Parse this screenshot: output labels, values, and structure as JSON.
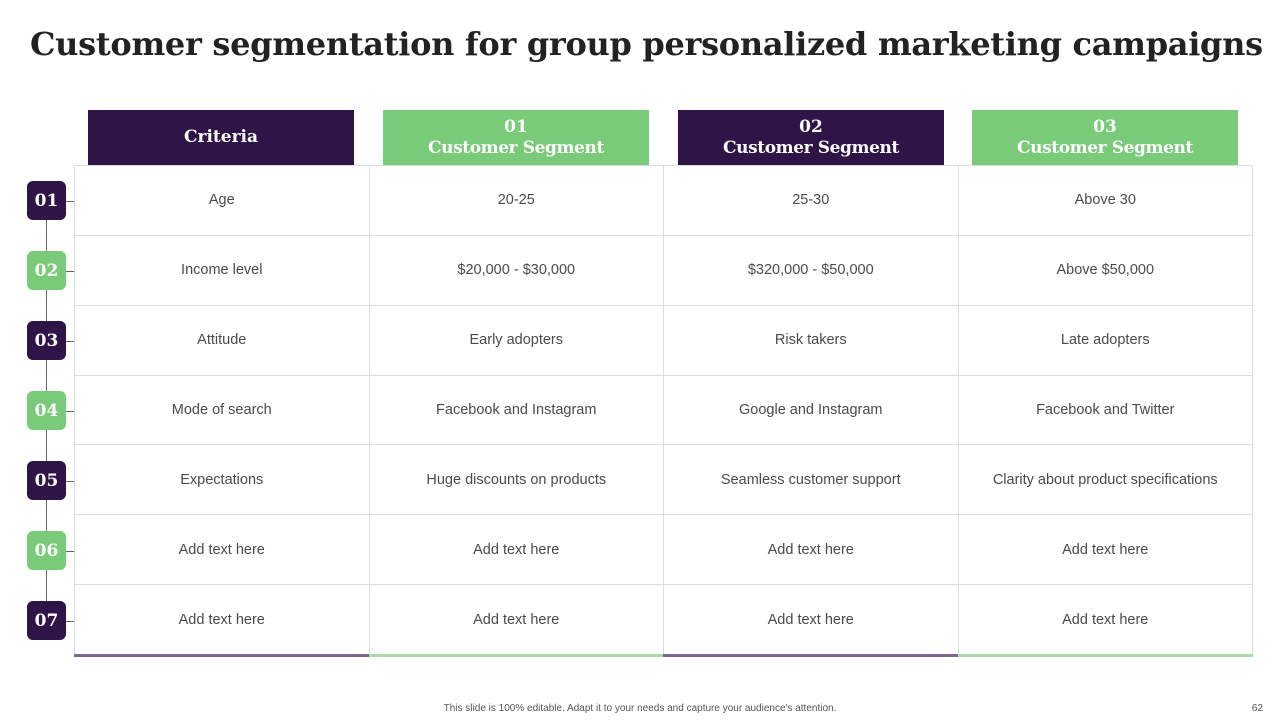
{
  "slide": {
    "title": "Customer segmentation for group personalized marketing campaigns",
    "footer": "This slide is 100% editable. Adapt it to your needs and capture your audience's attention.",
    "page_number": "62"
  },
  "colors": {
    "purple": "#2f1447",
    "green": "#79cb79"
  },
  "table": {
    "criteria_header": "Criteria",
    "segments": [
      {
        "number": "01",
        "name": "Customer Segment"
      },
      {
        "number": "02",
        "name": "Customer Segment"
      },
      {
        "number": "03",
        "name": "Customer Segment"
      }
    ],
    "rows": [
      {
        "badge": "01",
        "criteria": "Age",
        "values": [
          "20-25",
          "25-30",
          "Above 30"
        ]
      },
      {
        "badge": "02",
        "criteria": "Income level",
        "values": [
          "$20,000 - $30,000",
          "$320,000 - $50,000",
          "Above $50,000"
        ]
      },
      {
        "badge": "03",
        "criteria": "Attitude",
        "values": [
          "Early adopters",
          "Risk takers",
          "Late adopters"
        ]
      },
      {
        "badge": "04",
        "criteria": "Mode of search",
        "values": [
          "Facebook and Instagram",
          "Google and Instagram",
          "Facebook and Twitter"
        ]
      },
      {
        "badge": "05",
        "criteria": "Expectations",
        "values": [
          "Huge discounts on products",
          "Seamless customer support",
          "Clarity about product specifications"
        ]
      },
      {
        "badge": "06",
        "criteria": "Add text here",
        "values": [
          "Add text here",
          "Add text here",
          "Add text here"
        ]
      },
      {
        "badge": "07",
        "criteria": "Add text here",
        "values": [
          "Add text here",
          "Add text here",
          "Add text here"
        ]
      }
    ]
  }
}
